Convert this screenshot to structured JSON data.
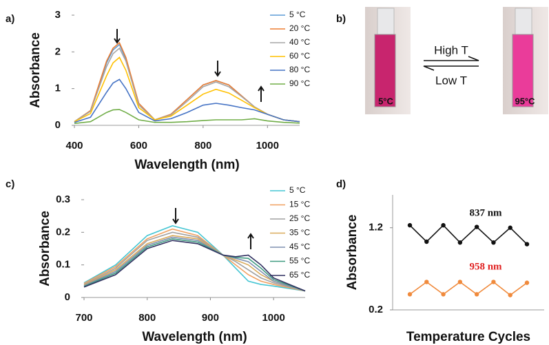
{
  "chart_data": [
    {
      "type": "line",
      "panel_label": "a)",
      "x_label": "Wavelength (nm)",
      "y_label": "Absorbance",
      "x": [
        400,
        450,
        500,
        520,
        540,
        560,
        600,
        650,
        700,
        750,
        800,
        840,
        880,
        920,
        960,
        1000,
        1050,
        1100
      ],
      "xlim": [
        400,
        1100
      ],
      "xticks": [
        400,
        600,
        800,
        1000
      ],
      "ylim": [
        0,
        3
      ],
      "yticks": [
        0,
        1,
        2,
        3
      ],
      "legend": "upper right",
      "series": [
        {
          "name": "5 °C",
          "color": "#5b9bd5",
          "values": [
            0.1,
            0.4,
            1.7,
            2.05,
            2.2,
            1.8,
            0.6,
            0.15,
            0.3,
            0.7,
            1.1,
            1.22,
            1.1,
            0.8,
            0.5,
            0.3,
            0.15,
            0.1
          ]
        },
        {
          "name": "20 °C",
          "color": "#ed7d31",
          "values": [
            0.1,
            0.4,
            1.75,
            2.1,
            2.25,
            1.85,
            0.6,
            0.15,
            0.3,
            0.7,
            1.1,
            1.22,
            1.1,
            0.8,
            0.5,
            0.3,
            0.15,
            0.1
          ]
        },
        {
          "name": "40 °C",
          "color": "#a5a5a5",
          "values": [
            0.1,
            0.38,
            1.6,
            1.95,
            2.1,
            1.75,
            0.55,
            0.15,
            0.28,
            0.65,
            1.05,
            1.18,
            1.05,
            0.78,
            0.5,
            0.3,
            0.15,
            0.1
          ]
        },
        {
          "name": "60 °C",
          "color": "#ffc000",
          "values": [
            0.1,
            0.32,
            1.35,
            1.7,
            1.85,
            1.5,
            0.48,
            0.15,
            0.25,
            0.55,
            0.85,
            0.98,
            0.88,
            0.68,
            0.48,
            0.3,
            0.15,
            0.1
          ]
        },
        {
          "name": "80 °C",
          "color": "#4472c4",
          "values": [
            0.08,
            0.22,
            0.9,
            1.15,
            1.25,
            1.0,
            0.35,
            0.12,
            0.18,
            0.35,
            0.55,
            0.6,
            0.55,
            0.48,
            0.42,
            0.3,
            0.15,
            0.1
          ]
        },
        {
          "name": "90 °C",
          "color": "#70ad47",
          "values": [
            0.05,
            0.1,
            0.35,
            0.42,
            0.43,
            0.35,
            0.15,
            0.08,
            0.08,
            0.1,
            0.13,
            0.15,
            0.15,
            0.15,
            0.18,
            0.12,
            0.08,
            0.06
          ]
        }
      ]
    },
    {
      "type": "line",
      "panel_label": "c)",
      "x_label": "Wavelength (nm)",
      "y_label": "Absorbance",
      "x": [
        700,
        750,
        800,
        840,
        880,
        920,
        940,
        960,
        980,
        1000,
        1050
      ],
      "xlim": [
        700,
        1050
      ],
      "xticks": [
        700,
        800,
        900,
        1000
      ],
      "ylim": [
        0,
        0.3
      ],
      "yticks": [
        0,
        0.1,
        0.2,
        0.3
      ],
      "legend": "upper right",
      "series": [
        {
          "name": "5 °C",
          "color": "#43c5d3",
          "values": [
            0.045,
            0.1,
            0.19,
            0.22,
            0.2,
            0.13,
            0.09,
            0.05,
            0.04,
            0.035,
            0.02
          ]
        },
        {
          "name": "15 °C",
          "color": "#f0a060",
          "values": [
            0.043,
            0.095,
            0.18,
            0.21,
            0.19,
            0.13,
            0.1,
            0.07,
            0.05,
            0.04,
            0.02
          ]
        },
        {
          "name": "25 °C",
          "color": "#a0a0a0",
          "values": [
            0.04,
            0.09,
            0.175,
            0.2,
            0.185,
            0.13,
            0.11,
            0.085,
            0.06,
            0.045,
            0.02
          ]
        },
        {
          "name": "35 °C",
          "color": "#d9aa5a",
          "values": [
            0.038,
            0.085,
            0.165,
            0.19,
            0.18,
            0.13,
            0.115,
            0.1,
            0.07,
            0.05,
            0.02
          ]
        },
        {
          "name": "45 °C",
          "color": "#7f8fb0",
          "values": [
            0.036,
            0.08,
            0.16,
            0.185,
            0.175,
            0.13,
            0.12,
            0.11,
            0.08,
            0.05,
            0.02
          ]
        },
        {
          "name": "55 °C",
          "color": "#3f9a80",
          "values": [
            0.034,
            0.075,
            0.155,
            0.18,
            0.17,
            0.13,
            0.123,
            0.12,
            0.09,
            0.055,
            0.02
          ]
        },
        {
          "name": "65 °C",
          "color": "#303060",
          "values": [
            0.032,
            0.07,
            0.15,
            0.175,
            0.165,
            0.13,
            0.125,
            0.13,
            0.1,
            0.06,
            0.02
          ]
        }
      ]
    },
    {
      "type": "line",
      "panel_label": "d)",
      "x_label": "Temperature Cycles",
      "y_label": "Absorbance",
      "categories": [
        null,
        null,
        null,
        null,
        null,
        null,
        null,
        null
      ],
      "ylim": [
        0.2,
        1.6
      ],
      "yticks": [
        0.2,
        1.2
      ],
      "markers": true,
      "series": [
        {
          "name": "837 nm",
          "color": "#111111",
          "label_color": "#111111",
          "values": [
            1.23,
            1.03,
            1.23,
            1.02,
            1.21,
            1.02,
            1.2,
            1.0
          ]
        },
        {
          "name": "958 nm",
          "color": "#f08a3c",
          "label_color": "#e02020",
          "values": [
            0.39,
            0.54,
            0.39,
            0.54,
            0.39,
            0.54,
            0.38,
            0.53
          ]
        }
      ]
    }
  ],
  "panel_b": {
    "panel_label": "b)",
    "left_label": "5°C",
    "right_label": "95°C",
    "forward": "High T",
    "reverse": "Low T"
  }
}
